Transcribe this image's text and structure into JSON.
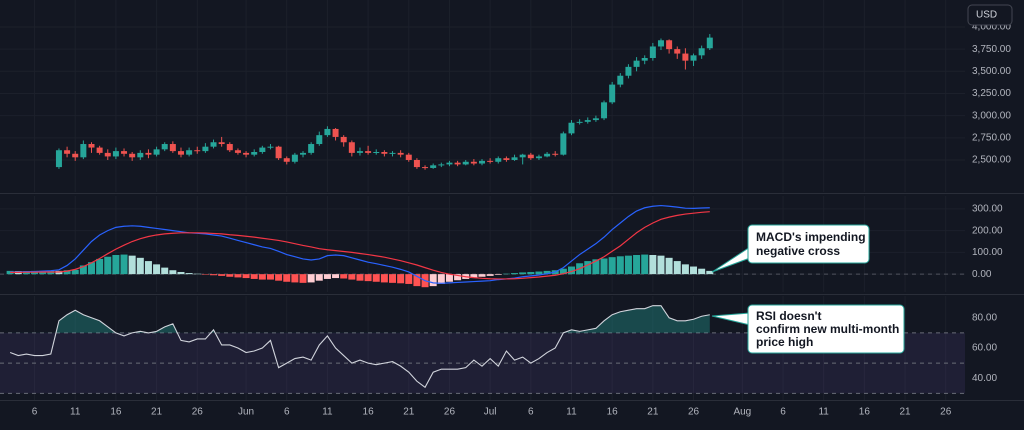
{
  "chart_data": [
    {
      "type": "candlestick",
      "currency": "USD",
      "up_color": "#26a69a",
      "down_color": "#ef5350",
      "grid": true,
      "xlim": [
        1,
        119
      ],
      "ylim": [
        2139,
        4304
      ],
      "yticks": [
        {
          "value": 2500,
          "label": "2,500.00"
        },
        {
          "value": 2750,
          "label": "2,750.00"
        },
        {
          "value": 3000,
          "label": "3,000.00"
        },
        {
          "value": 3250,
          "label": "3,250.00"
        },
        {
          "value": 3500,
          "label": "3,500.00"
        },
        {
          "value": 3750,
          "label": "3,750.00"
        },
        {
          "value": 4000,
          "label": "4,000.00"
        }
      ],
      "x": [
        8,
        9,
        10,
        11,
        12,
        13,
        14,
        15,
        16,
        17,
        18,
        19,
        20,
        21,
        22,
        23,
        24,
        25,
        26,
        27,
        28,
        29,
        30,
        31,
        32,
        33,
        34,
        35,
        36,
        37,
        38,
        39,
        40,
        41,
        42,
        43,
        44,
        45,
        46,
        47,
        48,
        49,
        50,
        51,
        52,
        53,
        54,
        55,
        56,
        57,
        58,
        59,
        60,
        61,
        62,
        63,
        64,
        65,
        66,
        67,
        68,
        69,
        70,
        71,
        72,
        73,
        74,
        75,
        76,
        77,
        78,
        79,
        80,
        81,
        82,
        83,
        84,
        85,
        86,
        87,
        88
      ],
      "open": [
        2420,
        2610,
        2570,
        2530,
        2680,
        2640,
        2580,
        2540,
        2600,
        2570,
        2530,
        2580,
        2560,
        2620,
        2680,
        2600,
        2560,
        2610,
        2600,
        2650,
        2700,
        2680,
        2610,
        2580,
        2560,
        2590,
        2640,
        2650,
        2520,
        2480,
        2560,
        2580,
        2680,
        2780,
        2850,
        2760,
        2700,
        2580,
        2600,
        2580,
        2590,
        2570,
        2580,
        2560,
        2500,
        2420,
        2410,
        2440,
        2450,
        2470,
        2450,
        2480,
        2460,
        2490,
        2480,
        2520,
        2500,
        2530,
        2560,
        2520,
        2540,
        2570,
        2560,
        2800,
        2920,
        2930,
        2950,
        2970,
        3150,
        3350,
        3450,
        3550,
        3620,
        3650,
        3780,
        3850,
        3750,
        3700,
        3620,
        3680,
        3760
      ],
      "high": [
        2630,
        2650,
        2600,
        2720,
        2700,
        2660,
        2620,
        2640,
        2630,
        2590,
        2610,
        2620,
        2650,
        2700,
        2710,
        2640,
        2640,
        2650,
        2690,
        2730,
        2760,
        2700,
        2630,
        2600,
        2620,
        2660,
        2680,
        2660,
        2540,
        2580,
        2600,
        2700,
        2820,
        2880,
        2860,
        2780,
        2720,
        2640,
        2660,
        2620,
        2610,
        2600,
        2610,
        2580,
        2520,
        2440,
        2460,
        2470,
        2490,
        2490,
        2500,
        2510,
        2510,
        2520,
        2540,
        2540,
        2560,
        2570,
        2580,
        2560,
        2590,
        2600,
        2820,
        2950,
        2960,
        2980,
        3000,
        3170,
        3380,
        3480,
        3580,
        3660,
        3680,
        3820,
        3870,
        3860,
        3780,
        3760,
        3700,
        3790,
        3920
      ],
      "low": [
        2400,
        2530,
        2490,
        2510,
        2580,
        2560,
        2500,
        2510,
        2540,
        2490,
        2500,
        2520,
        2540,
        2600,
        2580,
        2530,
        2540,
        2570,
        2580,
        2630,
        2650,
        2590,
        2560,
        2530,
        2540,
        2570,
        2620,
        2500,
        2450,
        2460,
        2530,
        2560,
        2660,
        2760,
        2720,
        2650,
        2540,
        2550,
        2560,
        2560,
        2540,
        2540,
        2530,
        2480,
        2400,
        2390,
        2400,
        2420,
        2430,
        2430,
        2440,
        2440,
        2440,
        2460,
        2460,
        2480,
        2490,
        2450,
        2500,
        2500,
        2530,
        2540,
        2550,
        2780,
        2900,
        2910,
        2930,
        2950,
        3130,
        3320,
        3420,
        3500,
        3580,
        3620,
        3740,
        3700,
        3640,
        3520,
        3560,
        3640,
        3740
      ],
      "close": [
        2610,
        2570,
        2530,
        2680,
        2640,
        2580,
        2540,
        2600,
        2570,
        2530,
        2580,
        2560,
        2620,
        2680,
        2600,
        2560,
        2610,
        2600,
        2650,
        2700,
        2680,
        2610,
        2580,
        2560,
        2590,
        2640,
        2650,
        2520,
        2480,
        2560,
        2580,
        2680,
        2780,
        2850,
        2760,
        2700,
        2580,
        2600,
        2580,
        2590,
        2570,
        2580,
        2560,
        2500,
        2420,
        2410,
        2440,
        2450,
        2470,
        2450,
        2480,
        2460,
        2490,
        2480,
        2520,
        2500,
        2530,
        2560,
        2520,
        2540,
        2570,
        2560,
        2800,
        2920,
        2930,
        2950,
        2970,
        3150,
        3350,
        3450,
        3550,
        3620,
        3650,
        3780,
        3850,
        3750,
        3700,
        3620,
        3680,
        3760,
        3880
      ]
    },
    {
      "type": "macd",
      "grid": true,
      "baseline": 0,
      "xlim": [
        1,
        119
      ],
      "ylim": [
        -82,
        359
      ],
      "yticks": [
        {
          "value": 0,
          "label": "0.00"
        },
        {
          "value": 100,
          "label": "100.00"
        },
        {
          "value": 200,
          "label": "200.00"
        },
        {
          "value": 300,
          "label": "300.00"
        }
      ],
      "annotation": [
        "MACD's impending",
        "negative cross"
      ],
      "x": [
        2,
        3,
        4,
        5,
        6,
        7,
        8,
        9,
        10,
        11,
        12,
        13,
        14,
        15,
        16,
        17,
        18,
        19,
        20,
        21,
        22,
        23,
        24,
        25,
        26,
        27,
        28,
        29,
        30,
        31,
        32,
        33,
        34,
        35,
        36,
        37,
        38,
        39,
        40,
        41,
        42,
        43,
        44,
        45,
        46,
        47,
        48,
        49,
        50,
        51,
        52,
        53,
        54,
        55,
        56,
        57,
        58,
        59,
        60,
        61,
        62,
        63,
        64,
        65,
        66,
        67,
        68,
        69,
        70,
        71,
        72,
        73,
        74,
        75,
        76,
        77,
        78,
        79,
        80,
        81,
        82,
        83,
        84,
        85,
        86,
        87,
        88
      ],
      "histogram": [
        15,
        14,
        14,
        15,
        15,
        16,
        15,
        18,
        20,
        40,
        55,
        70,
        80,
        88,
        90,
        85,
        75,
        60,
        45,
        30,
        18,
        10,
        5,
        2,
        -2,
        -5,
        -8,
        -12,
        -15,
        -18,
        -22,
        -25,
        -25,
        -30,
        -35,
        -38,
        -40,
        -38,
        -30,
        -22,
        -18,
        -20,
        -25,
        -30,
        -32,
        -35,
        -38,
        -40,
        -42,
        -45,
        -55,
        -60,
        -55,
        -45,
        -35,
        -28,
        -22,
        -18,
        -12,
        -8,
        -3,
        2,
        5,
        8,
        10,
        12,
        15,
        18,
        25,
        35,
        50,
        60,
        68,
        72,
        78,
        82,
        85,
        88,
        90,
        88,
        85,
        75,
        60,
        45,
        35,
        25,
        15
      ],
      "hist_colors": [
        "#26a69a",
        "#b2dfdb",
        "#ff5252",
        "#ffcdd2"
      ],
      "series": [
        {
          "color": "#2962ff",
          "values": [
            10,
            10,
            12,
            12,
            14,
            16,
            20,
            40,
            70,
            110,
            150,
            180,
            200,
            215,
            220,
            222,
            220,
            215,
            210,
            205,
            200,
            195,
            190,
            188,
            185,
            180,
            175,
            165,
            155,
            145,
            135,
            125,
            118,
            105,
            90,
            80,
            70,
            65,
            70,
            85,
            88,
            85,
            75,
            65,
            55,
            48,
            40,
            32,
            22,
            10,
            -10,
            -30,
            -40,
            -42,
            -40,
            -38,
            -36,
            -34,
            -32,
            -30,
            -25,
            -22,
            -18,
            -12,
            -8,
            -4,
            2,
            10,
            30,
            60,
            90,
            115,
            140,
            170,
            205,
            235,
            265,
            290,
            305,
            312,
            315,
            312,
            308,
            303,
            302,
            304,
            305
          ]
        },
        {
          "color": "#f23645",
          "values": [
            8,
            8,
            9,
            9,
            10,
            10,
            10,
            14,
            22,
            35,
            52,
            72,
            94,
            115,
            133,
            150,
            163,
            173,
            180,
            185,
            188,
            190,
            190,
            190,
            189,
            187,
            185,
            181,
            178,
            174,
            170,
            165,
            160,
            155,
            148,
            140,
            132,
            125,
            117,
            112,
            108,
            104,
            100,
            95,
            90,
            84,
            78,
            70,
            62,
            52,
            42,
            30,
            18,
            8,
            0,
            -6,
            -12,
            -16,
            -19,
            -21,
            -22,
            -22,
            -21,
            -19,
            -16,
            -13,
            -9,
            -5,
            2,
            12,
            25,
            42,
            60,
            80,
            105,
            130,
            160,
            190,
            215,
            235,
            252,
            262,
            270,
            276,
            280,
            284,
            287
          ]
        }
      ]
    },
    {
      "type": "rsi",
      "color": "#d1d4dc",
      "fill_color": "#26a69a",
      "band_color": "#7e57c2",
      "band": [
        30,
        70
      ],
      "midline": 50,
      "xlim": [
        1,
        119
      ],
      "ylim": [
        25.6,
        94.4
      ],
      "yticks": [
        {
          "value": 40,
          "label": "40.00"
        },
        {
          "value": 60,
          "label": "60.00"
        },
        {
          "value": 80,
          "label": "80.00"
        }
      ],
      "xticks": [
        {
          "value": 5,
          "label": "6"
        },
        {
          "value": 10,
          "label": "11"
        },
        {
          "value": 15,
          "label": "16"
        },
        {
          "value": 20,
          "label": "21"
        },
        {
          "value": 25,
          "label": "26"
        },
        {
          "value": 31,
          "label": "Jun"
        },
        {
          "value": 36,
          "label": "6"
        },
        {
          "value": 41,
          "label": "11"
        },
        {
          "value": 46,
          "label": "16"
        },
        {
          "value": 51,
          "label": "21"
        },
        {
          "value": 56,
          "label": "26"
        },
        {
          "value": 61,
          "label": "Jul"
        },
        {
          "value": 66,
          "label": "6"
        },
        {
          "value": 71,
          "label": "11"
        },
        {
          "value": 76,
          "label": "16"
        },
        {
          "value": 81,
          "label": "21"
        },
        {
          "value": 86,
          "label": "26"
        },
        {
          "value": 92,
          "label": "Aug"
        },
        {
          "value": 97,
          "label": "6"
        },
        {
          "value": 102,
          "label": "11"
        },
        {
          "value": 107,
          "label": "16"
        },
        {
          "value": 112,
          "label": "21"
        },
        {
          "value": 117,
          "label": "26"
        }
      ],
      "annotation": [
        "RSI doesn't",
        "confirm new multi-month",
        "price high"
      ],
      "x": [
        2,
        3,
        4,
        5,
        6,
        7,
        8,
        9,
        10,
        11,
        12,
        13,
        14,
        15,
        16,
        17,
        18,
        19,
        20,
        21,
        22,
        23,
        24,
        25,
        26,
        27,
        28,
        29,
        30,
        31,
        32,
        33,
        34,
        35,
        36,
        37,
        38,
        39,
        40,
        41,
        42,
        43,
        44,
        45,
        46,
        47,
        48,
        49,
        50,
        51,
        52,
        53,
        54,
        55,
        56,
        57,
        58,
        59,
        60,
        61,
        62,
        63,
        64,
        65,
        66,
        67,
        68,
        69,
        70,
        71,
        72,
        73,
        74,
        75,
        76,
        77,
        78,
        79,
        80,
        81,
        82,
        83,
        84,
        85,
        86,
        87,
        88
      ],
      "values": [
        57,
        55,
        56,
        55,
        55,
        56,
        78,
        82,
        85,
        82,
        80,
        78,
        74,
        70,
        68,
        70,
        71,
        70,
        71,
        74,
        76,
        65,
        64,
        66,
        66,
        72,
        62,
        62,
        60,
        57,
        58,
        60,
        65,
        47,
        50,
        53,
        54,
        52,
        62,
        68,
        60,
        55,
        50,
        52,
        50,
        49,
        50,
        51,
        48,
        44,
        38,
        34,
        44,
        46,
        46,
        46,
        47,
        52,
        48,
        53,
        48,
        58,
        52,
        54,
        50,
        53,
        57,
        60,
        70,
        72,
        71,
        72,
        73,
        78,
        82,
        84,
        85,
        86,
        86,
        88,
        88,
        80,
        78,
        78,
        79,
        81,
        82
      ]
    }
  ]
}
